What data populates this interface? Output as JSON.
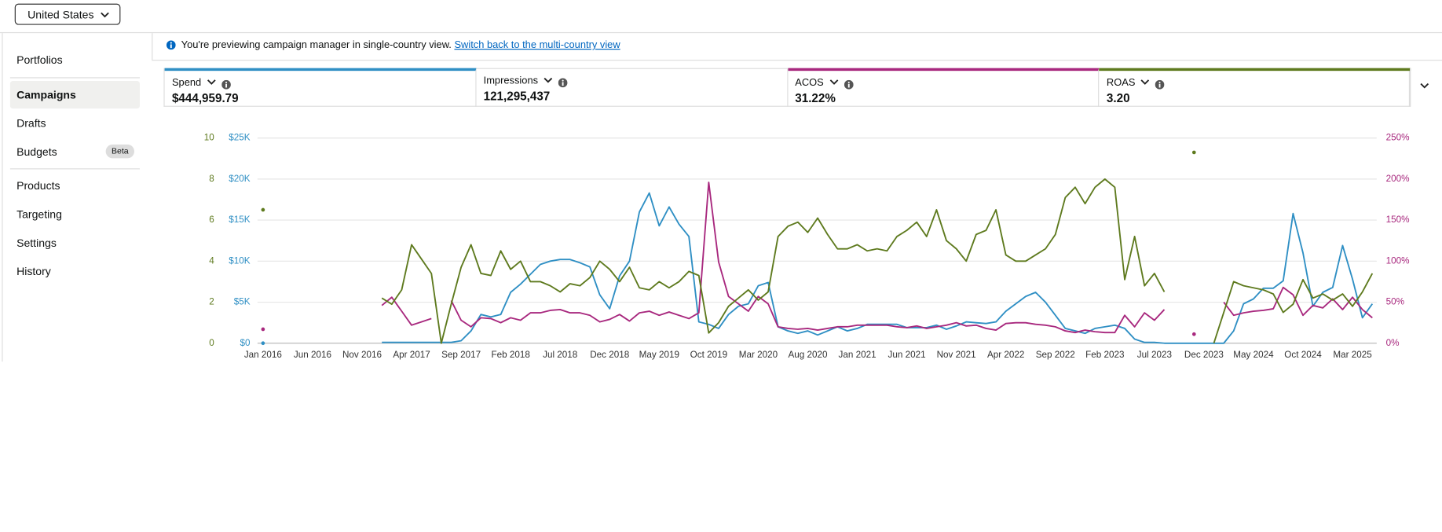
{
  "country_select": "United States",
  "nav": [
    {
      "label": "Portfolios"
    },
    {
      "label": "Campaigns"
    },
    {
      "label": "Drafts"
    },
    {
      "label": "Budgets",
      "badge": "Beta"
    },
    {
      "label": "Products"
    },
    {
      "label": "Targeting"
    },
    {
      "label": "Settings"
    },
    {
      "label": "History"
    }
  ],
  "banner": {
    "text": "You're previewing campaign manager in single-country view.",
    "link": "Switch back to the multi-country view"
  },
  "metrics": [
    {
      "name": "Spend",
      "value": "$444,959.79",
      "color": "#2f8fc4"
    },
    {
      "name": "Impressions",
      "value": "121,295,437"
    },
    {
      "name": "ACOS",
      "value": "31.22%",
      "color": "#a8287e"
    },
    {
      "name": "ROAS",
      "value": "3.20",
      "color": "#5e7a1e"
    }
  ],
  "chart_data": {
    "type": "line",
    "categories": [
      "Jan 2016",
      null,
      null,
      null,
      null,
      "Jun 2016",
      null,
      null,
      null,
      null,
      "Nov 2016",
      null,
      null,
      null,
      null,
      "Apr 2017",
      null,
      null,
      null,
      null,
      "Sep 2017",
      null,
      null,
      null,
      null,
      "Feb 2018",
      null,
      null,
      null,
      null,
      "Jul 2018",
      null,
      null,
      null,
      null,
      "Dec 2018",
      null,
      null,
      null,
      null,
      "May 2019",
      null,
      null,
      null,
      null,
      "Oct 2019",
      null,
      null,
      null,
      null,
      "Mar 2020",
      null,
      null,
      null,
      null,
      "Aug 2020",
      null,
      null,
      null,
      null,
      "Jan 2021",
      null,
      null,
      null,
      null,
      "Jun 2021",
      null,
      null,
      null,
      null,
      "Nov 2021",
      null,
      null,
      null,
      null,
      "Apr 2022",
      null,
      null,
      null,
      null,
      "Sep 2022",
      null,
      null,
      null,
      null,
      "Feb 2023",
      null,
      null,
      null,
      null,
      "Jul 2023",
      null,
      null,
      null,
      null,
      "Dec 2023",
      null,
      null,
      null,
      null,
      "May 2024",
      null,
      null,
      null,
      null,
      "Oct 2024",
      null,
      null,
      null,
      null,
      "Mar 2025",
      null,
      null
    ],
    "series": [
      {
        "color": "#2f8fc4",
        "axis": "y",
        "values": [
          0,
          null,
          null,
          null,
          null,
          null,
          null,
          null,
          null,
          null,
          null,
          null,
          100,
          100,
          100,
          100,
          100,
          100,
          100,
          100,
          300,
          1500,
          3500,
          3200,
          3500,
          6200,
          7200,
          8400,
          9600,
          10000,
          10200,
          10200,
          9800,
          9300,
          5900,
          4200,
          8200,
          10000,
          16000,
          18300,
          14300,
          16600,
          14500,
          13000,
          2600,
          2300,
          1800,
          3500,
          4500,
          4800,
          7000,
          7400,
          2000,
          1500,
          1200,
          1500,
          1000,
          1500,
          2000,
          1500,
          1800,
          2300,
          2300,
          2300,
          2300,
          1900,
          1900,
          1900,
          2200,
          1700,
          2100,
          2600,
          2500,
          2400,
          2600,
          3900,
          4800,
          5700,
          6200,
          5000,
          3400,
          1800,
          1500,
          1200,
          1800,
          2000,
          2200,
          1800,
          500,
          100,
          100,
          0,
          0,
          0,
          0,
          0,
          0,
          0,
          1500,
          4800,
          5400,
          6700,
          6700,
          7600,
          15800,
          11000,
          4500,
          6200,
          6800,
          11900,
          7800,
          3100,
          4800
        ]
      },
      {
        "color": "#a8287e",
        "axis": "y2",
        "values": [
          17,
          null,
          null,
          null,
          null,
          null,
          null,
          null,
          null,
          null,
          null,
          null,
          46,
          56,
          39,
          22,
          26,
          30,
          null,
          52,
          28,
          20,
          31,
          30,
          25,
          31,
          28,
          37,
          37,
          40,
          41,
          37,
          37,
          34,
          26,
          29,
          35,
          27,
          37,
          39,
          34,
          38,
          34,
          30,
          37,
          196,
          99,
          57,
          48,
          39,
          57,
          48,
          20,
          18,
          17,
          18,
          16,
          18,
          20,
          20,
          22,
          22,
          22,
          22,
          20,
          19,
          21,
          18,
          20,
          22,
          25,
          21,
          22,
          18,
          16,
          24,
          25,
          25,
          23,
          22,
          20,
          15,
          13,
          16,
          14,
          13,
          13,
          34,
          20,
          37,
          28,
          41,
          null,
          null,
          11,
          null,
          null,
          50,
          34,
          37,
          39,
          40,
          42,
          68,
          59,
          34,
          46,
          43,
          54,
          41,
          56,
          41,
          31
        ]
      },
      {
        "color": "#5e7a1e",
        "axis": "y3",
        "values": [
          6.5,
          null,
          null,
          null,
          null,
          null,
          null,
          null,
          null,
          null,
          null,
          null,
          2.2,
          1.9,
          2.6,
          4.8,
          4.1,
          3.4,
          0,
          1.9,
          3.7,
          4.8,
          3.4,
          3.3,
          4.5,
          3.6,
          4.0,
          3.0,
          3.0,
          2.8,
          2.5,
          2.9,
          2.8,
          3.2,
          4.0,
          3.6,
          3.0,
          3.7,
          2.7,
          2.6,
          3.0,
          2.7,
          3.0,
          3.5,
          3.3,
          0.5,
          1.0,
          1.8,
          2.2,
          2.6,
          2.1,
          2.5,
          5.2,
          5.7,
          5.9,
          5.4,
          6.1,
          5.3,
          4.6,
          4.6,
          4.8,
          4.5,
          4.6,
          4.5,
          5.2,
          5.5,
          5.9,
          5.2,
          6.5,
          5.0,
          4.6,
          4.0,
          5.3,
          5.5,
          6.5,
          4.3,
          4.0,
          4.0,
          4.3,
          4.6,
          5.3,
          7.1,
          7.6,
          6.8,
          7.6,
          8.0,
          7.6,
          3.1,
          5.2,
          2.8,
          3.4,
          2.5,
          null,
          null,
          9.3,
          null,
          0,
          1.5,
          3.0,
          2.8,
          2.7,
          2.6,
          2.4,
          1.5,
          1.9,
          3.1,
          2.2,
          2.4,
          2.1,
          2.4,
          1.8,
          2.5,
          3.4
        ]
      }
    ],
    "ylim": [
      0,
      25000
    ],
    "yticks": [
      {
        "value": 0,
        "label": "$0"
      },
      {
        "value": 5000,
        "label": "$5K"
      },
      {
        "value": 10000,
        "label": "$10K"
      },
      {
        "value": 15000,
        "label": "$15K"
      },
      {
        "value": 20000,
        "label": "$20K"
      },
      {
        "value": 25000,
        "label": "$25K"
      }
    ],
    "y2lim": [
      0,
      250
    ],
    "y2ticks": [
      {
        "value": 0,
        "label": "0%"
      },
      {
        "value": 50,
        "label": "50%"
      },
      {
        "value": 100,
        "label": "100%"
      },
      {
        "value": 150,
        "label": "150%"
      },
      {
        "value": 200,
        "label": "200%"
      },
      {
        "value": 250,
        "label": "250%"
      }
    ],
    "y3lim": [
      0,
      10
    ],
    "y3ticks": [
      0,
      2,
      4,
      6,
      8,
      10
    ],
    "grid": true
  }
}
